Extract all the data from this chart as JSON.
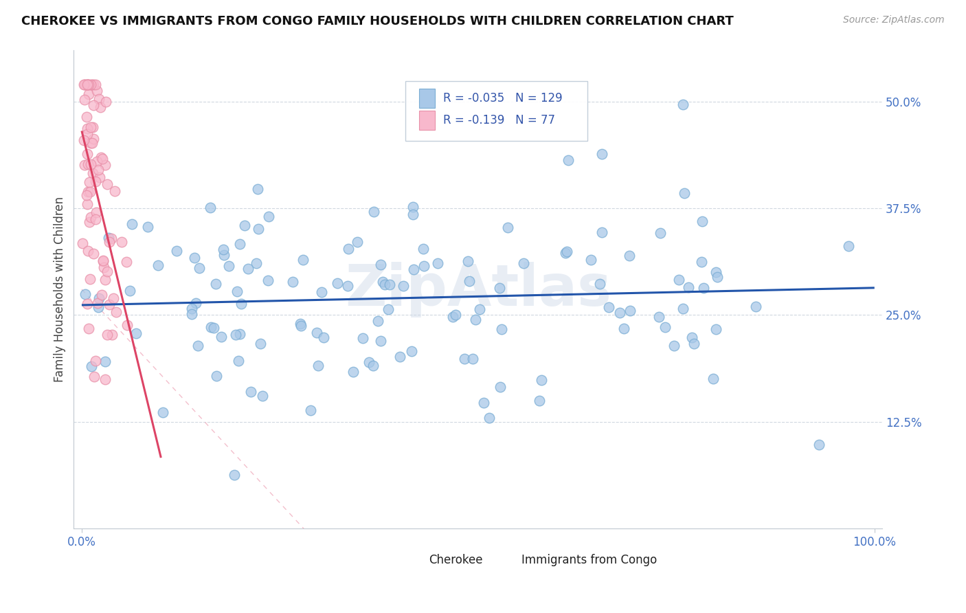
{
  "title": "CHEROKEE VS IMMIGRANTS FROM CONGO FAMILY HOUSEHOLDS WITH CHILDREN CORRELATION CHART",
  "source": "Source: ZipAtlas.com",
  "ylabel": "Family Households with Children",
  "yticks": [
    "12.5%",
    "25.0%",
    "37.5%",
    "50.0%"
  ],
  "ytick_vals": [
    0.125,
    0.25,
    0.375,
    0.5
  ],
  "legend_label1": "Cherokee",
  "legend_label2": "Immigrants from Congo",
  "r1": "-0.035",
  "n1": "129",
  "r2": "-0.139",
  "n2": "77",
  "color_cherokee_fill": "#a8c8e8",
  "color_cherokee_edge": "#7aadd4",
  "color_congo_fill": "#f8b8cc",
  "color_congo_edge": "#e890a8",
  "color_trendline1": "#2255aa",
  "color_trendline2": "#dd4466",
  "color_diag": "#e8c0cc",
  "watermark": "ZipAtlas",
  "xmin": 0.0,
  "xmax": 1.0,
  "ymin": 0.0,
  "ymax": 0.56,
  "background_color": "#ffffff"
}
